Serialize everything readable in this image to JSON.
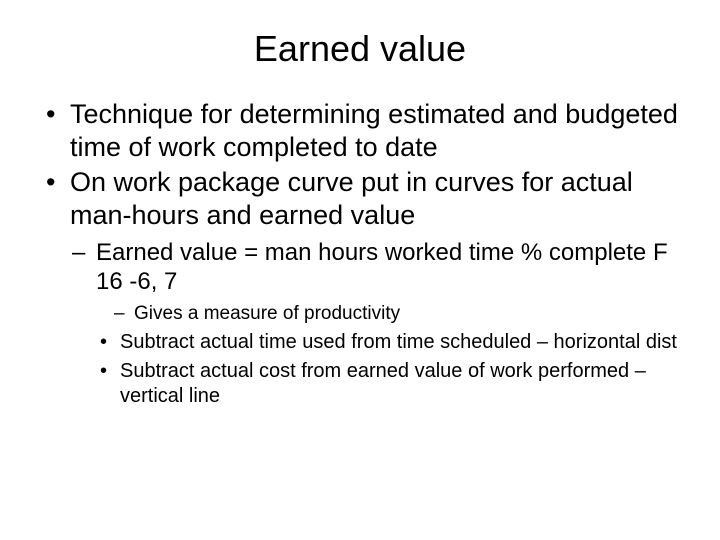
{
  "title": "Earned value",
  "bullets": {
    "b1": "Technique for determining estimated and budgeted time of work completed to date",
    "b2": "On work package curve put in curves for actual man-hours and earned value",
    "b2_1": "Earned value = man hours worked time % complete F 16 -6, 7",
    "b2_1_1": "Gives a measure of productivity",
    "b2_1_b1": "Subtract actual time used from time scheduled – horizontal dist",
    "b2_1_b2": "Subtract actual cost from earned value of work performed – vertical line"
  },
  "style": {
    "background_color": "#ffffff",
    "text_color": "#000000",
    "title_fontsize": 36,
    "lvl1_fontsize": 27,
    "lvl2_fontsize": 24,
    "lvl3_fontsize": 19,
    "lvl3b_fontsize": 20,
    "font_family": "Arial"
  }
}
